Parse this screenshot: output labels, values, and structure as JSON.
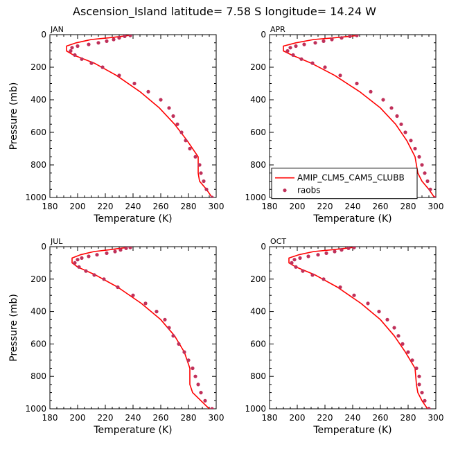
{
  "figure_title": "Ascension_Island   latitude= 7.58 S longitude= 14.24 W",
  "legend": {
    "model_label": "AMIP_CLM5_CAM5_CLUBB",
    "obs_label": "raobs"
  },
  "colors": {
    "model": "#ff0000",
    "obs": "#c0305a"
  },
  "chart_data": [
    {
      "type": "line",
      "title": "JAN",
      "xlabel": "Temperature (K)",
      "ylabel": "Pressure (mb)",
      "xlim": [
        180,
        300
      ],
      "ylim": [
        1000,
        0
      ],
      "xticks": [
        "180",
        "200",
        "220",
        "240",
        "260",
        "280",
        "300"
      ],
      "yticks": [
        "0",
        "200",
        "400",
        "600",
        "800",
        "1000"
      ],
      "series": [
        {
          "name": "AMIP_CLM5_CAM5_CLUBB",
          "style": "line",
          "x": [
            237,
            232,
            222,
            210,
            199,
            192,
            192,
            197,
            212,
            228,
            245,
            259,
            270,
            279,
            287,
            287,
            288,
            293,
            297
          ],
          "y": [
            5,
            10,
            20,
            30,
            50,
            70,
            100,
            125,
            175,
            250,
            350,
            450,
            550,
            650,
            750,
            850,
            900,
            950,
            1000
          ]
        },
        {
          "name": "raobs",
          "style": "scatter",
          "x": [
            238,
            234,
            230,
            226,
            221,
            215,
            208,
            200,
            196,
            195,
            198,
            203,
            210,
            218,
            230,
            241,
            251,
            260,
            266,
            269,
            272,
            275,
            278,
            281,
            285,
            288,
            289,
            291,
            293,
            297
          ],
          "y": [
            5,
            10,
            20,
            30,
            40,
            50,
            60,
            70,
            80,
            100,
            125,
            150,
            175,
            200,
            250,
            300,
            350,
            400,
            450,
            500,
            550,
            600,
            650,
            700,
            750,
            800,
            850,
            900,
            950,
            1000
          ]
        }
      ]
    },
    {
      "type": "line",
      "title": "APR",
      "xlabel": "Temperature (K)",
      "ylabel": "Pressure (mb)",
      "xlim": [
        180,
        300
      ],
      "ylim": [
        1000,
        0
      ],
      "xticks": [
        "180",
        "200",
        "220",
        "240",
        "260",
        "280",
        "300"
      ],
      "yticks": [
        "0",
        "200",
        "400",
        "600",
        "800",
        "1000"
      ],
      "series": [
        {
          "name": "AMIP_CLM5_CAM5_CLUBB",
          "style": "line",
          "x": [
            244,
            238,
            226,
            212,
            199,
            190,
            190,
            196,
            210,
            227,
            245,
            260,
            271,
            279,
            285,
            287,
            290,
            295,
            299
          ],
          "y": [
            5,
            10,
            20,
            30,
            50,
            70,
            100,
            125,
            175,
            250,
            350,
            450,
            550,
            650,
            750,
            850,
            900,
            950,
            1000
          ]
        },
        {
          "name": "raobs",
          "style": "scatter",
          "x": [
            243,
            238,
            232,
            225,
            219,
            213,
            205,
            199,
            195,
            193,
            197,
            203,
            211,
            220,
            231,
            243,
            253,
            262,
            268,
            272,
            275,
            278,
            282,
            285,
            288,
            290,
            292,
            294,
            296,
            300
          ],
          "y": [
            5,
            10,
            20,
            30,
            40,
            50,
            60,
            70,
            80,
            100,
            125,
            150,
            175,
            200,
            250,
            300,
            350,
            400,
            450,
            500,
            550,
            600,
            650,
            700,
            750,
            800,
            850,
            900,
            950,
            1000
          ]
        }
      ]
    },
    {
      "type": "line",
      "title": "JUL",
      "xlabel": "Temperature (K)",
      "ylabel": "Pressure (mb)",
      "xlim": [
        180,
        300
      ],
      "ylim": [
        1000,
        0
      ],
      "xticks": [
        "180",
        "200",
        "220",
        "240",
        "260",
        "280",
        "300"
      ],
      "yticks": [
        "0",
        "200",
        "400",
        "600",
        "800",
        "1000"
      ],
      "series": [
        {
          "name": "AMIP_CLM5_CAM5_CLUBB",
          "style": "line",
          "x": [
            236,
            231,
            222,
            212,
            202,
            196,
            196,
            200,
            213,
            229,
            246,
            260,
            270,
            277,
            281,
            281,
            283,
            289,
            295
          ],
          "y": [
            5,
            10,
            20,
            30,
            50,
            70,
            100,
            125,
            175,
            250,
            350,
            450,
            550,
            650,
            750,
            850,
            900,
            950,
            1000
          ]
        },
        {
          "name": "raobs",
          "style": "scatter",
          "x": [
            238,
            235,
            231,
            227,
            221,
            214,
            208,
            203,
            200,
            198,
            201,
            206,
            212,
            219,
            229,
            240,
            249,
            257,
            263,
            266,
            269,
            273,
            277,
            280,
            283,
            285,
            287,
            289,
            292,
            297
          ],
          "y": [
            5,
            10,
            20,
            30,
            40,
            50,
            60,
            70,
            80,
            100,
            125,
            150,
            175,
            200,
            250,
            300,
            350,
            400,
            450,
            500,
            550,
            600,
            650,
            700,
            750,
            800,
            850,
            900,
            950,
            1000
          ]
        }
      ]
    },
    {
      "type": "line",
      "title": "OCT",
      "xlabel": "Temperature (K)",
      "ylabel": "Pressure (mb)",
      "xlim": [
        180,
        300
      ],
      "ylim": [
        1000,
        0
      ],
      "xticks": [
        "180",
        "200",
        "220",
        "240",
        "260",
        "280",
        "300"
      ],
      "yticks": [
        "0",
        "200",
        "400",
        "600",
        "800",
        "1000"
      ],
      "series": [
        {
          "name": "AMIP_CLM5_CAM5_CLUBB",
          "style": "line",
          "x": [
            240,
            235,
            224,
            212,
            201,
            194,
            194,
            199,
            213,
            229,
            246,
            260,
            270,
            278,
            285,
            286,
            287,
            290,
            294
          ],
          "y": [
            5,
            10,
            20,
            30,
            50,
            70,
            100,
            125,
            175,
            250,
            350,
            450,
            550,
            650,
            750,
            850,
            900,
            950,
            1000
          ]
        },
        {
          "name": "raobs",
          "style": "scatter",
          "x": [
            241,
            237,
            232,
            227,
            221,
            215,
            208,
            202,
            198,
            196,
            199,
            204,
            211,
            219,
            231,
            241,
            251,
            259,
            265,
            270,
            273,
            276,
            280,
            283,
            286,
            288,
            288,
            290,
            292,
            295
          ],
          "y": [
            5,
            10,
            20,
            30,
            40,
            50,
            60,
            70,
            80,
            100,
            125,
            150,
            175,
            200,
            250,
            300,
            350,
            400,
            450,
            500,
            550,
            600,
            650,
            700,
            750,
            800,
            850,
            900,
            950,
            1000
          ]
        }
      ]
    }
  ]
}
